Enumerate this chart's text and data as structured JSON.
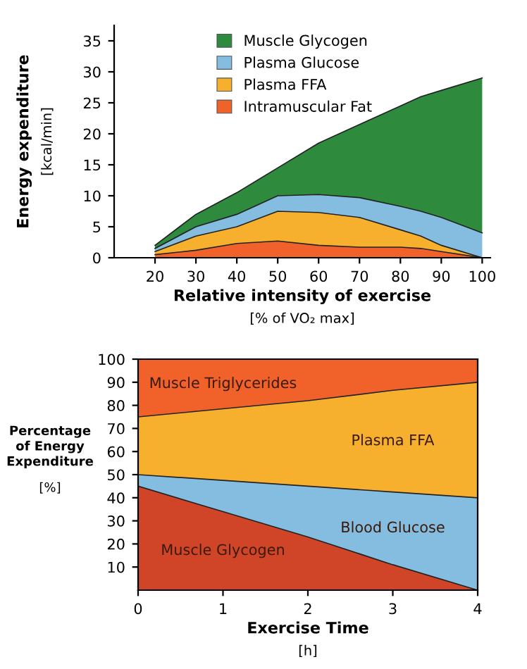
{
  "chart_data": [
    {
      "type": "area",
      "stacked": true,
      "xlabel": "Relative intensity of exercise\n[% of VO₂ max]",
      "ylabel": "Energy expenditure\n[kcal/min]",
      "x": [
        20,
        30,
        40,
        50,
        60,
        70,
        80,
        85,
        90,
        100
      ],
      "series": [
        {
          "name": "Intramuscular Fat",
          "color": "#f0622a",
          "values": [
            0.5,
            1.2,
            2.3,
            2.7,
            2,
            1.7,
            1.7,
            1.5,
            1,
            0
          ]
        },
        {
          "name": "Plasma FFA",
          "color": "#f7b02e",
          "values": [
            0.5,
            2.3,
            2.7,
            4.8,
            5.3,
            4.8,
            2.8,
            2,
            1,
            0
          ]
        },
        {
          "name": "Plasma Glucose",
          "color": "#85bde0",
          "values": [
            0.5,
            1.5,
            2,
            2.5,
            2.9,
            3.2,
            3.8,
            4,
            4.5,
            4
          ]
        },
        {
          "name": "Muscle Glycogen",
          "color": "#2e8b3e",
          "values": [
            0.5,
            2,
            3.5,
            4.5,
            8.3,
            11.8,
            16.2,
            18.5,
            20.5,
            25
          ]
        }
      ],
      "xlim": [
        10,
        102
      ],
      "ylim": [
        0,
        37.5
      ],
      "xticks": [
        20,
        30,
        40,
        50,
        60,
        70,
        80,
        90,
        100
      ],
      "yticks": [
        0,
        5,
        10,
        15,
        20,
        25,
        30,
        35
      ],
      "legend": "top left",
      "grid": false
    },
    {
      "type": "area",
      "stacked": true,
      "xlabel": "Exercise Time\n[h]",
      "ylabel": "Percentage\nof Energy\nExpenditure\n[%]",
      "x": [
        0,
        1,
        2,
        3,
        4
      ],
      "series": [
        {
          "name": "Muscle Glycogen",
          "color": "#d04527",
          "values": [
            45,
            34,
            23,
            11,
            0
          ]
        },
        {
          "name": "Blood Glucose",
          "color": "#85bde0",
          "values": [
            5,
            13.5,
            22,
            31.5,
            40
          ]
        },
        {
          "name": "Plasma FFA",
          "color": "#f7b02e",
          "values": [
            25,
            31,
            37,
            44,
            50
          ]
        },
        {
          "name": "Muscle Triglycerides",
          "color": "#f0622a",
          "values": [
            25,
            21.5,
            18,
            13.5,
            10
          ]
        }
      ],
      "xlim": [
        0,
        4
      ],
      "ylim": [
        0,
        100
      ],
      "xticks": [
        0,
        1,
        2,
        3,
        4
      ],
      "yticks": [
        10,
        20,
        30,
        40,
        50,
        60,
        70,
        80,
        90,
        100
      ],
      "grid": false
    }
  ]
}
